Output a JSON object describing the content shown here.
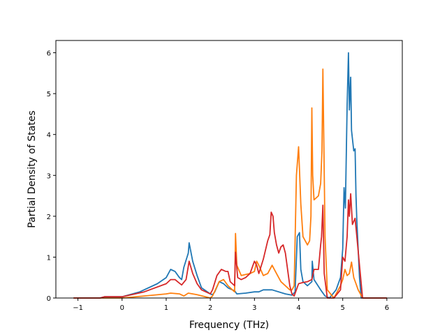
{
  "chart_data": {
    "type": "line",
    "title": "",
    "xlabel": "Frequency (THz)",
    "ylabel": "Partial Density of States",
    "xlim": [
      -1.5,
      6.35
    ],
    "ylim": [
      0,
      6.3
    ],
    "xticks": [
      -1,
      0,
      1,
      2,
      3,
      4,
      5,
      6
    ],
    "yticks": [
      0,
      1,
      2,
      3,
      4,
      5,
      6
    ],
    "grid": false,
    "legend": "none",
    "series": [
      {
        "color": "#1f77b4",
        "x": [
          -1.1,
          -0.5,
          -0.4,
          0,
          0.4,
          0.8,
          1.0,
          1.1,
          1.2,
          1.3,
          1.35,
          1.4,
          1.5,
          1.52,
          1.6,
          1.7,
          1.8,
          2.0,
          2.05,
          2.1,
          2.2,
          2.3,
          2.4,
          2.5,
          2.55,
          2.6,
          2.8,
          3.0,
          3.1,
          3.2,
          3.4,
          3.7,
          3.85,
          3.92,
          3.97,
          4.02,
          4.05,
          4.1,
          4.2,
          4.3,
          4.31,
          4.35,
          4.5,
          4.6,
          4.7,
          4.85,
          4.95,
          5.0,
          5.03,
          5.06,
          5.1,
          5.13,
          5.15,
          5.18,
          5.2,
          5.25,
          5.28,
          5.3,
          5.32,
          5.38,
          5.42,
          6.0
        ],
        "y": [
          0,
          0,
          0.03,
          0.03,
          0.15,
          0.35,
          0.5,
          0.7,
          0.65,
          0.5,
          0.45,
          0.75,
          1.1,
          1.35,
          0.9,
          0.55,
          0.25,
          0.1,
          0.08,
          0.15,
          0.4,
          0.35,
          0.25,
          0.2,
          0.18,
          0.1,
          0.12,
          0.15,
          0.15,
          0.2,
          0.2,
          0.1,
          0.07,
          0.15,
          1.5,
          1.6,
          0.7,
          0.4,
          0.3,
          0.4,
          0.9,
          0.45,
          0.2,
          0.05,
          0,
          0.2,
          0.5,
          1.2,
          2.7,
          2.2,
          4.7,
          6.0,
          4.6,
          5.4,
          4.1,
          3.6,
          3.65,
          2.5,
          1.9,
          0.5,
          0,
          0
        ]
      },
      {
        "color": "#ff7f0e",
        "x": [
          -1.1,
          -0.5,
          0,
          0.5,
          1.0,
          1.1,
          1.3,
          1.4,
          1.5,
          1.7,
          2.0,
          2.05,
          2.2,
          2.3,
          2.4,
          2.5,
          2.55,
          2.57,
          2.6,
          2.7,
          2.9,
          3.0,
          3.05,
          3.1,
          3.2,
          3.3,
          3.4,
          3.5,
          3.6,
          3.7,
          3.8,
          3.85,
          3.9,
          3.95,
          4.0,
          4.05,
          4.1,
          4.2,
          4.25,
          4.28,
          4.3,
          4.32,
          4.35,
          4.45,
          4.5,
          4.53,
          4.55,
          4.6,
          4.65,
          4.8,
          4.95,
          5.0,
          5.05,
          5.1,
          5.15,
          5.2,
          5.25,
          5.3,
          5.35,
          5.4,
          5.45,
          6.0
        ],
        "y": [
          0,
          0,
          0,
          0.05,
          0.1,
          0.12,
          0.1,
          0.05,
          0.12,
          0.08,
          0,
          0.05,
          0.4,
          0.45,
          0.3,
          0.2,
          0.15,
          1.58,
          0.8,
          0.55,
          0.6,
          0.65,
          0.9,
          0.8,
          0.55,
          0.6,
          0.8,
          0.6,
          0.4,
          0.3,
          0.2,
          0.2,
          0.3,
          3.0,
          3.7,
          2.3,
          1.5,
          1.3,
          1.4,
          2.0,
          4.65,
          3.0,
          2.4,
          2.5,
          2.8,
          3.6,
          5.6,
          1.5,
          0.2,
          0,
          0.3,
          0.45,
          0.7,
          0.55,
          0.6,
          0.88,
          0.5,
          0.35,
          0.2,
          0.1,
          0,
          0
        ]
      },
      {
        "color": "#d62728",
        "x": [
          -1.1,
          -0.5,
          -0.4,
          0,
          0.5,
          1.0,
          1.1,
          1.2,
          1.35,
          1.45,
          1.52,
          1.6,
          1.7,
          1.8,
          2.0,
          2.05,
          2.15,
          2.25,
          2.35,
          2.4,
          2.45,
          2.55,
          2.57,
          2.62,
          2.7,
          2.8,
          2.9,
          3.0,
          3.05,
          3.1,
          3.2,
          3.3,
          3.35,
          3.38,
          3.42,
          3.45,
          3.5,
          3.55,
          3.6,
          3.65,
          3.7,
          3.8,
          3.85,
          3.9,
          4.0,
          4.1,
          4.2,
          4.3,
          4.35,
          4.45,
          4.5,
          4.52,
          4.55,
          4.58,
          4.65,
          4.8,
          4.95,
          5.0,
          5.05,
          5.1,
          5.13,
          5.15,
          5.18,
          5.22,
          5.28,
          5.32,
          5.45,
          6.0
        ],
        "y": [
          0,
          0,
          0.03,
          0.03,
          0.15,
          0.35,
          0.45,
          0.45,
          0.32,
          0.45,
          0.9,
          0.6,
          0.35,
          0.2,
          0.1,
          0.2,
          0.55,
          0.7,
          0.65,
          0.65,
          0.4,
          0.3,
          1.12,
          0.5,
          0.45,
          0.5,
          0.6,
          0.9,
          0.8,
          0.6,
          0.95,
          1.4,
          1.55,
          2.1,
          2.0,
          1.6,
          1.3,
          1.1,
          1.25,
          1.3,
          1.1,
          0.3,
          0.1,
          0.05,
          0.35,
          0.38,
          0.4,
          0.45,
          0.7,
          0.7,
          1.3,
          1.5,
          2.27,
          0.6,
          0,
          0,
          0.2,
          1.0,
          0.9,
          1.5,
          2.4,
          2.0,
          2.55,
          1.8,
          1.95,
          1.5,
          0,
          0
        ]
      }
    ]
  }
}
